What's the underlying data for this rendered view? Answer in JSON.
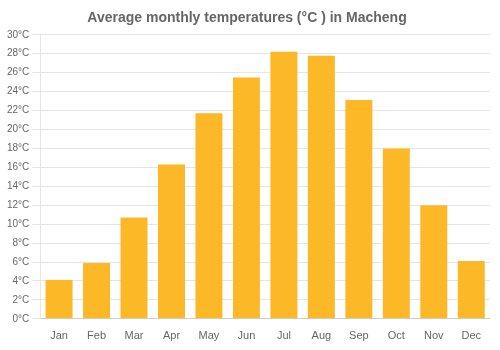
{
  "chart_data": {
    "type": "bar",
    "title": "Average monthly temperatures (°C ) in Macheng",
    "categories": [
      "Jan",
      "Feb",
      "Mar",
      "Apr",
      "May",
      "Jun",
      "Jul",
      "Aug",
      "Sep",
      "Oct",
      "Nov",
      "Dec"
    ],
    "values": [
      4.1,
      5.9,
      10.7,
      16.3,
      21.7,
      25.5,
      28.2,
      27.8,
      23.1,
      18.0,
      12.0,
      6.1
    ],
    "color": "#FDB827",
    "ylim": [
      0,
      30
    ],
    "yticks": [
      {
        "value": 0,
        "label": "0°C"
      },
      {
        "value": 2,
        "label": "2°C"
      },
      {
        "value": 4,
        "label": "4°C"
      },
      {
        "value": 6,
        "label": "6°C"
      },
      {
        "value": 8,
        "label": "8°C"
      },
      {
        "value": 10,
        "label": "10°C"
      },
      {
        "value": 12,
        "label": "12°C"
      },
      {
        "value": 14,
        "label": "14°C"
      },
      {
        "value": 16,
        "label": "16°C"
      },
      {
        "value": 18,
        "label": "18°C"
      },
      {
        "value": 20,
        "label": "20°C"
      },
      {
        "value": 22,
        "label": "22°C"
      },
      {
        "value": 24,
        "label": "24°C"
      },
      {
        "value": 26,
        "label": "26°C"
      },
      {
        "value": 28,
        "label": "28°C"
      },
      {
        "value": 30,
        "label": "30°C"
      }
    ],
    "grid": true
  }
}
